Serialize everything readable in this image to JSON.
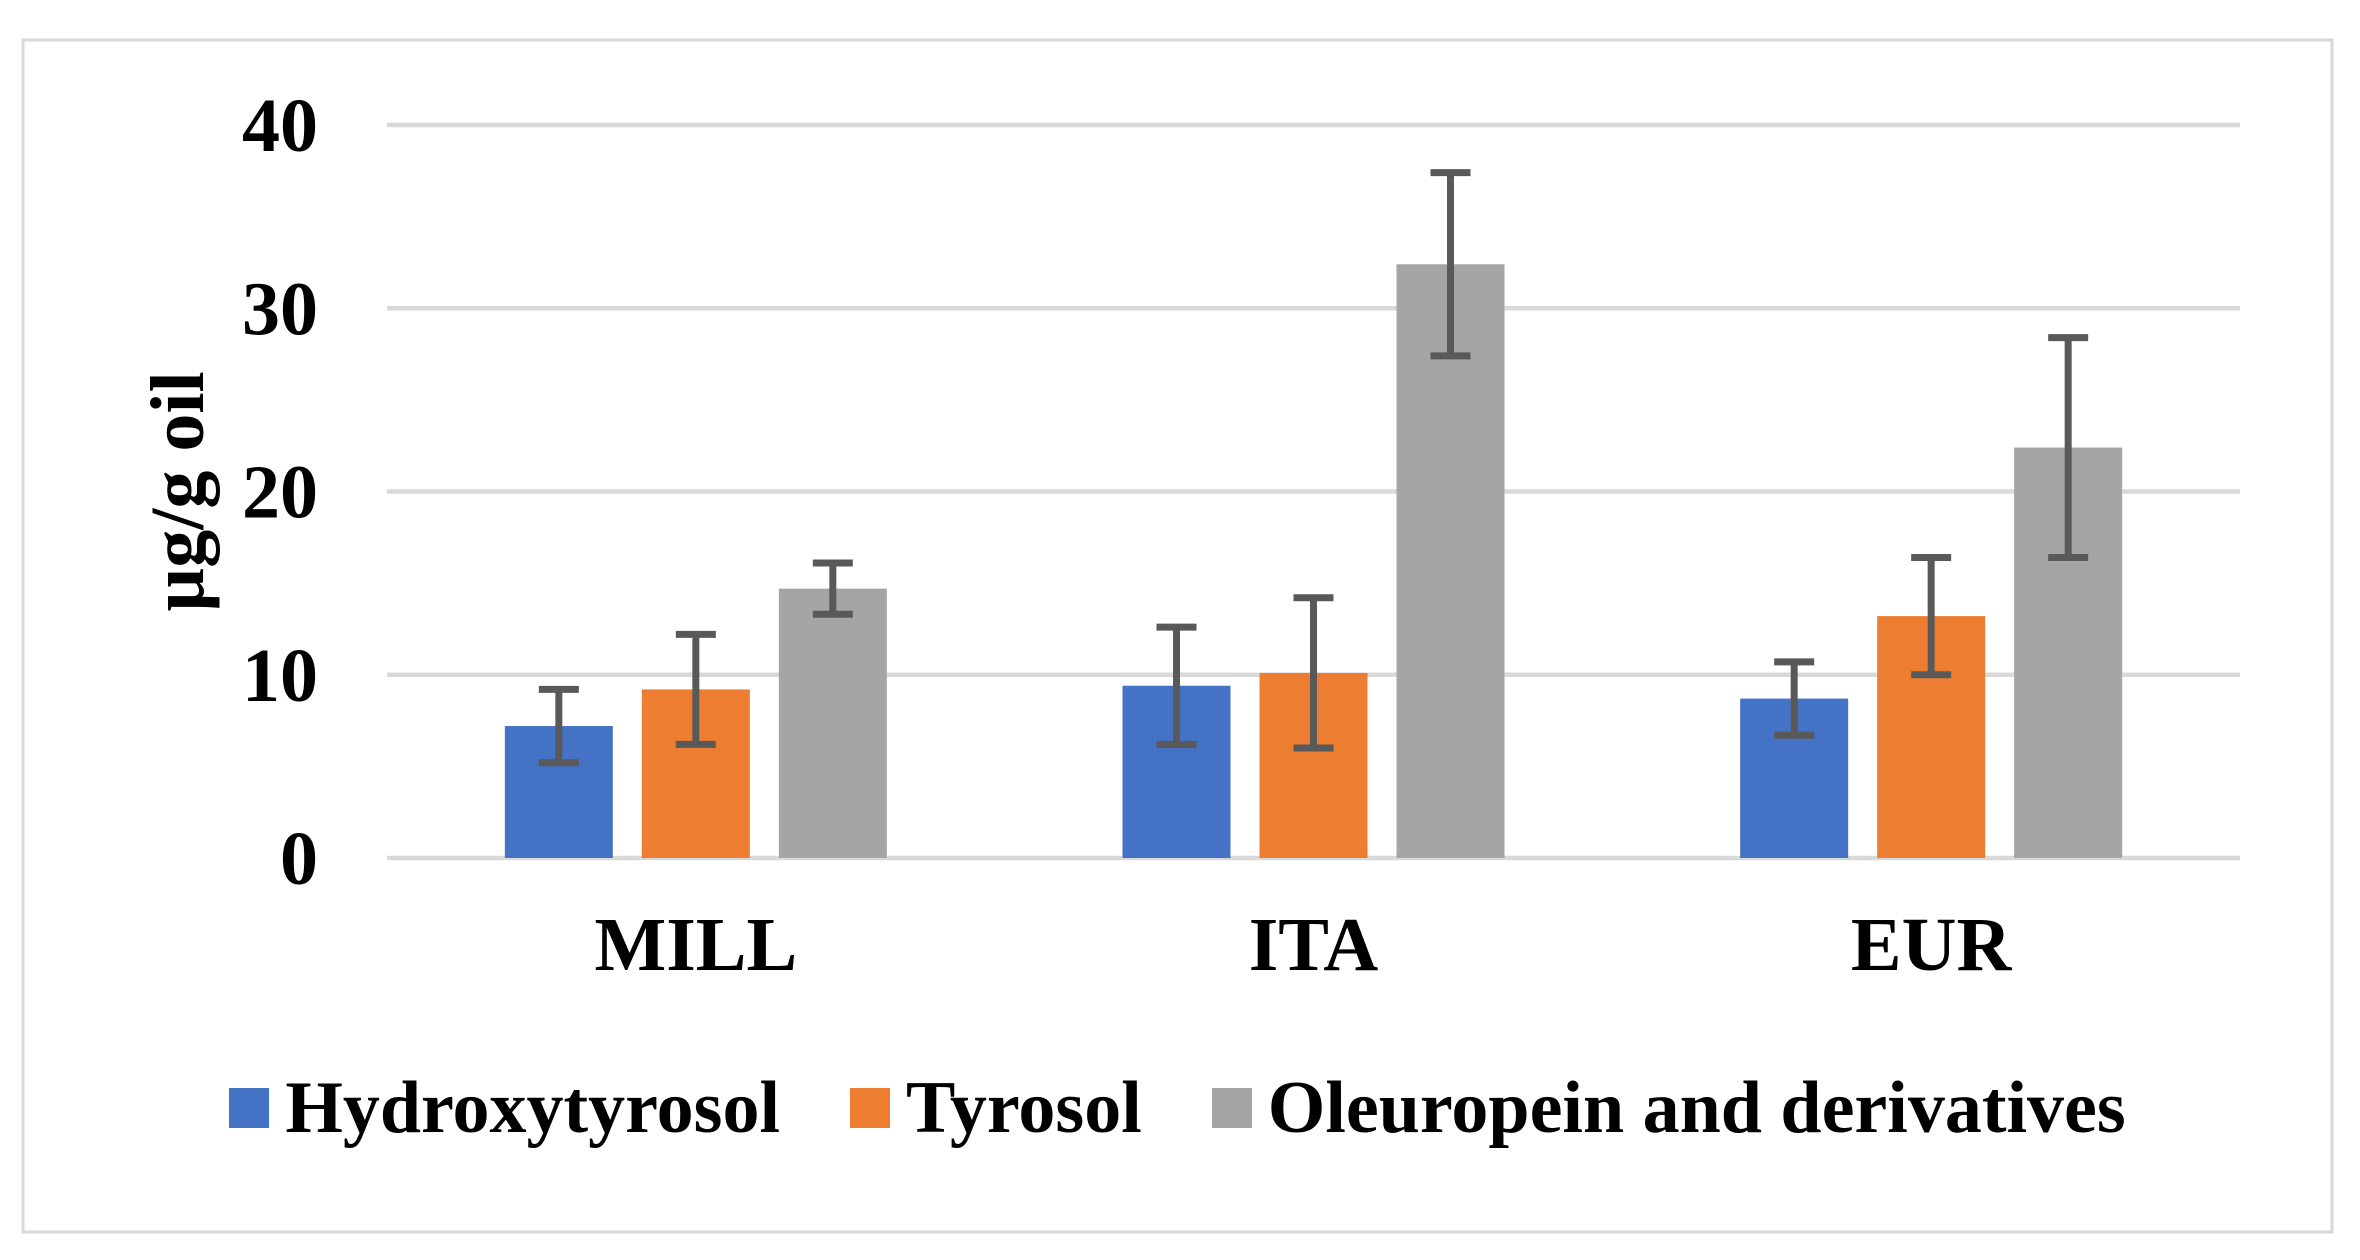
{
  "chart_data": {
    "type": "bar",
    "title": "",
    "categories": [
      "MILL",
      "ITA",
      "EUR"
    ],
    "series": [
      {
        "name": "Hydroxytyrosol",
        "color": "#4472C4",
        "values": [
          7.2,
          9.4,
          8.7
        ],
        "errors": [
          2.0,
          3.2,
          2.0
        ]
      },
      {
        "name": "Tyrosol",
        "color": "#ED7D31",
        "values": [
          9.2,
          10.1,
          13.2
        ],
        "errors": [
          3.0,
          4.1,
          3.2
        ]
      },
      {
        "name": "Oleuropein and derivatives",
        "color": "#A5A5A5",
        "values": [
          14.7,
          32.4,
          22.4
        ],
        "errors": [
          1.4,
          5.0,
          6.0
        ]
      }
    ],
    "xlabel": "",
    "ylabel": "µg/g oil",
    "ylim": [
      0,
      40
    ],
    "yticks": [
      0,
      10,
      20,
      30,
      40
    ],
    "grid": true,
    "legend_position": "bottom",
    "error_bar_color": "#595959",
    "gridline_color": "#D9D9D9",
    "frame_border_color": "#D9D9D9",
    "text_color": "#000000",
    "background_color": "#FFFFFF"
  }
}
